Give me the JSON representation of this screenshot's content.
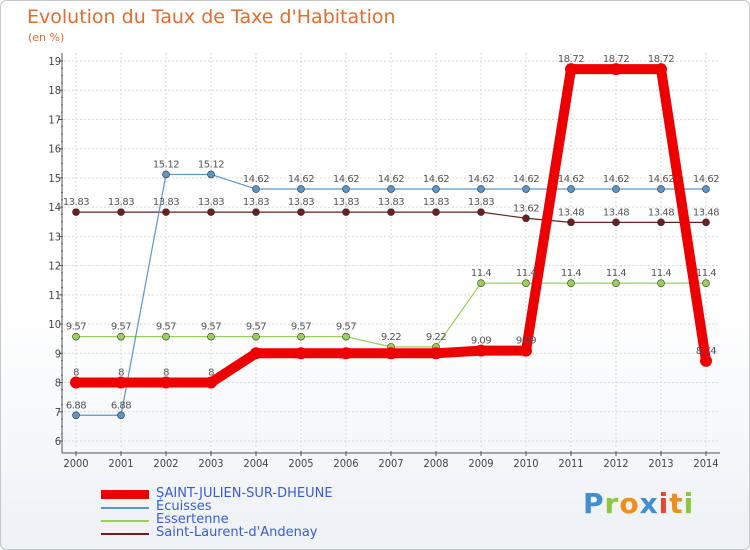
{
  "title": "Evolution du Taux de Taxe d'Habitation",
  "subtitle": "(en %)",
  "logo": {
    "letters": [
      "P",
      "r",
      "o",
      "x",
      "i",
      "t",
      "i"
    ],
    "colors": [
      "#3f8fd1",
      "#8cc63e",
      "#f28c1a",
      "#3f8fd1",
      "#e8452c",
      "#f28c1a",
      "#8cc63e"
    ]
  },
  "chart_data": {
    "type": "line",
    "categories": [
      "2000",
      "2001",
      "2002",
      "2003",
      "2004",
      "2005",
      "2006",
      "2007",
      "2008",
      "2009",
      "2010",
      "2011",
      "2012",
      "2013",
      "2014"
    ],
    "ylim": [
      6,
      19
    ],
    "yticks": [
      6,
      7,
      8,
      9,
      10,
      11,
      12,
      13,
      14,
      15,
      16,
      17,
      18,
      19
    ],
    "series": [
      {
        "name": "Saint-Laurent-d'Andenay",
        "color": "#6b1f1f",
        "width": 1.2,
        "marker": 3.5,
        "values": [
          13.83,
          13.83,
          13.83,
          13.83,
          13.83,
          13.83,
          13.83,
          13.83,
          13.83,
          13.83,
          13.62,
          13.48,
          13.48,
          13.48,
          13.48
        ],
        "labels": [
          "13.83",
          "13.83",
          "13.83",
          "13.83",
          "13.83",
          "13.83",
          "13.83",
          "13.83",
          "13.83",
          "13.83",
          "13.62",
          "13.48",
          "13.48",
          "13.48",
          "13.48"
        ]
      },
      {
        "name": "Essertenne",
        "color": "#9ad05a",
        "width": 1.2,
        "marker": 3.5,
        "values": [
          9.57,
          9.57,
          9.57,
          9.57,
          9.57,
          9.57,
          9.57,
          9.22,
          9.22,
          11.4,
          11.4,
          11.4,
          11.4,
          11.4,
          11.4
        ],
        "labels": [
          "9.57",
          "9.57",
          "9.57",
          "9.57",
          "9.57",
          "9.57",
          "9.57",
          "9.22",
          "9.22",
          "11.4",
          "11.4",
          "11.4",
          "11.4",
          "11.4",
          "11.4"
        ]
      },
      {
        "name": "Écuisses",
        "color": "#5b96c8",
        "width": 1.2,
        "marker": 3.5,
        "values": [
          6.88,
          6.88,
          15.12,
          15.12,
          14.62,
          14.62,
          14.62,
          14.62,
          14.62,
          14.62,
          14.62,
          14.62,
          14.62,
          14.62,
          14.62
        ],
        "labels": [
          "6.88",
          "6.88",
          "15.12",
          "15.12",
          "14.62",
          "14.62",
          "14.62",
          "14.62",
          "14.62",
          "14.62",
          "14.62",
          "14.62",
          "14.62",
          "14.62",
          "14.62"
        ]
      },
      {
        "name": "SAINT-JULIEN-SUR-DHEUNE",
        "color": "#ee0000",
        "width": 10,
        "marker": 6,
        "values": [
          8,
          8,
          8,
          8,
          9,
          9,
          9,
          9,
          9,
          9.09,
          9.09,
          18.72,
          18.72,
          18.72,
          8.74
        ],
        "labels": [
          "8",
          "8",
          "8",
          "8",
          "",
          "",
          "",
          "",
          "",
          "9.09",
          "9.09",
          "18.72",
          "18.72",
          "18.72",
          "8.74"
        ]
      }
    ],
    "legend": [
      "SAINT-JULIEN-SUR-DHEUNE",
      "Écuisses",
      "Essertenne",
      "Saint-Laurent-d'Andenay"
    ]
  }
}
